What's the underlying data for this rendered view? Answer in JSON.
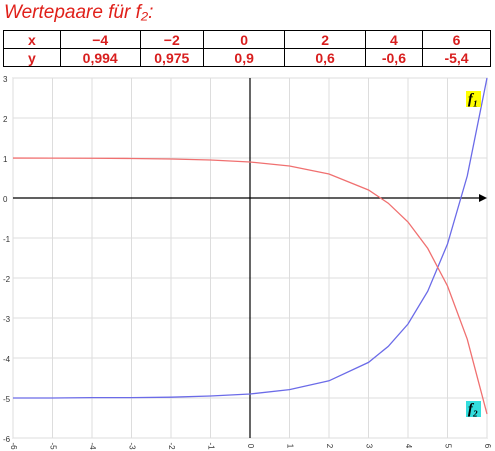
{
  "title": "Wertepaare für f₂:",
  "table": {
    "rows": [
      [
        "x",
        "−4",
        "−2",
        "0",
        "2",
        "4",
        "6"
      ],
      [
        "y",
        "0,994",
        "0,975",
        "0,9",
        "0,6",
        "-0,6",
        "-5,4"
      ]
    ]
  },
  "chart_data": {
    "type": "line",
    "x": [
      -6,
      -5,
      -4,
      -3,
      -2,
      -1,
      0,
      1,
      2,
      3,
      3.5,
      4,
      4.5,
      5,
      5.5,
      6
    ],
    "series": [
      {
        "name": "f₁",
        "color": "#6b6be8",
        "label_bg": "#ffff00",
        "values": [
          -5.0,
          -5.0,
          -4.99,
          -4.99,
          -4.98,
          -4.95,
          -4.9,
          -4.79,
          -4.57,
          -4.11,
          -3.71,
          -3.15,
          -2.33,
          -1.15,
          0.55,
          3
        ]
      },
      {
        "name": "f₂",
        "color": "#f07070",
        "label_bg": "#33dddd",
        "values": [
          0.998,
          0.997,
          0.994,
          0.988,
          0.975,
          0.95,
          0.9,
          0.8,
          0.6,
          0.2,
          -0.13,
          -0.6,
          -1.26,
          -2.2,
          -3.53,
          -5.4
        ]
      }
    ],
    "xlim": [
      -6,
      6
    ],
    "ylim": [
      -6,
      3
    ],
    "xticks": [
      -6,
      -5,
      -4,
      -3,
      -2,
      -1,
      0,
      1,
      2,
      3,
      4,
      5,
      6
    ],
    "yticks": [
      -6,
      -5,
      -4,
      -3,
      -2,
      -1,
      0,
      1,
      2,
      3
    ],
    "grid": true
  }
}
